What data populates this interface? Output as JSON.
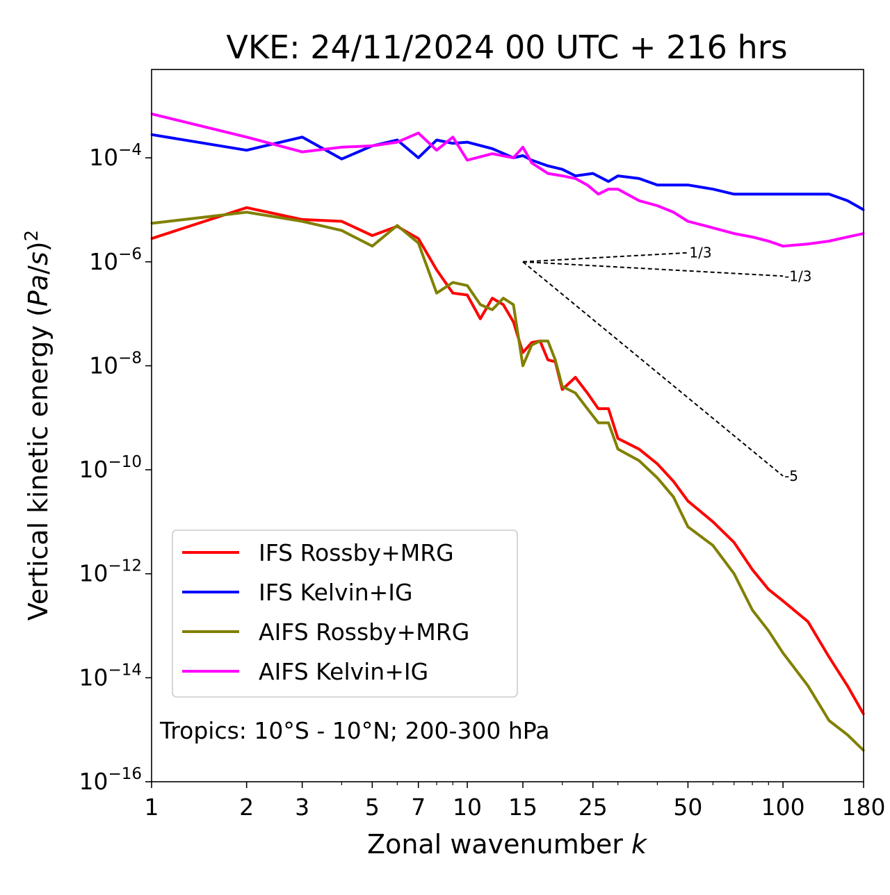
{
  "chart_data": {
    "type": "line",
    "title": "VKE: 24/11/2024 00 UTC + 216 hrs",
    "xlabel": "Zonal wavenumber k",
    "ylabel": "Vertical kinetic energy (Pa/s)²",
    "xscale": "log",
    "yscale": "log",
    "xlim": [
      1,
      180
    ],
    "ylim": [
      1e-16,
      0.005
    ],
    "xticks": [
      1,
      2,
      3,
      5,
      7,
      10,
      15,
      25,
      50,
      100,
      180
    ],
    "xtick_labels": [
      "1",
      "2",
      "3",
      "5",
      "7",
      "10",
      "15",
      "25",
      "50",
      "100",
      "180"
    ],
    "yticks": [
      -16,
      -14,
      -12,
      -10,
      -8,
      -6,
      -4
    ],
    "ytick_base": "10",
    "ytick_exponents": [
      "−16",
      "−14",
      "−12",
      "−10",
      "−8",
      "−6",
      "−4"
    ],
    "annotation": "Tropics: 10°S - 10°N; 200-300 hPa",
    "legend_position": "lower-left",
    "grid": false,
    "series": [
      {
        "name": "IFS Rossby+MRG",
        "color": "#ff0000",
        "x": [
          1,
          2,
          3,
          4,
          5,
          6,
          7,
          8,
          9,
          10,
          11,
          12,
          13,
          14,
          15,
          16,
          17,
          18,
          19,
          20,
          22,
          24,
          26,
          28,
          30,
          35,
          40,
          45,
          50,
          60,
          70,
          80,
          90,
          100,
          120,
          140,
          160,
          180
        ],
        "y": [
          2.8e-06,
          1.1e-05,
          6.5e-06,
          6e-06,
          3.2e-06,
          4.8e-06,
          2.8e-06,
          7e-07,
          2.5e-07,
          2.3e-07,
          8e-08,
          2e-07,
          1.5e-07,
          7e-08,
          1.8e-08,
          2.8e-08,
          3e-08,
          1.3e-08,
          1.2e-08,
          3.5e-09,
          6e-09,
          3e-09,
          1.5e-09,
          1.5e-09,
          4e-10,
          2.5e-10,
          1.3e-10,
          6e-11,
          2.5e-11,
          1e-11,
          4e-12,
          1.2e-12,
          5e-13,
          3e-13,
          1.2e-13,
          2.5e-14,
          7e-15,
          2e-15
        ]
      },
      {
        "name": "IFS Kelvin+IG",
        "color": "#0000ff",
        "x": [
          1,
          2,
          3,
          4,
          5,
          6,
          7,
          8,
          9,
          10,
          12,
          14,
          15,
          16,
          18,
          20,
          22,
          25,
          28,
          30,
          35,
          40,
          45,
          50,
          60,
          70,
          80,
          90,
          100,
          120,
          140,
          160,
          180
        ],
        "y": [
          0.00028,
          0.00014,
          0.00025,
          9.5e-05,
          0.00017,
          0.00022,
          0.0001,
          0.00022,
          0.00019,
          0.0002,
          0.00015,
          0.0001,
          0.00011,
          9e-05,
          7e-05,
          6e-05,
          4.5e-05,
          5e-05,
          3.5e-05,
          4.5e-05,
          4e-05,
          3e-05,
          3e-05,
          3e-05,
          2.5e-05,
          2e-05,
          2e-05,
          2e-05,
          2e-05,
          2e-05,
          2e-05,
          1.5e-05,
          1e-05
        ]
      },
      {
        "name": "AIFS Rossby+MRG",
        "color": "#808000",
        "x": [
          1,
          2,
          3,
          4,
          5,
          6,
          7,
          8,
          9,
          10,
          11,
          12,
          13,
          14,
          15,
          16,
          17,
          18,
          19,
          20,
          22,
          24,
          26,
          28,
          30,
          35,
          40,
          45,
          50,
          60,
          70,
          80,
          90,
          100,
          120,
          140,
          160,
          180
        ],
        "y": [
          5.5e-06,
          9e-06,
          6e-06,
          4e-06,
          2e-06,
          5e-06,
          2.3e-06,
          2.5e-07,
          4e-07,
          3.5e-07,
          1.5e-07,
          1.2e-07,
          2e-07,
          1.5e-07,
          1e-08,
          2.5e-08,
          3e-08,
          3e-08,
          1.3e-08,
          4e-09,
          3e-09,
          1.5e-09,
          8e-10,
          8e-10,
          2.5e-10,
          1.5e-10,
          7e-11,
          3e-11,
          8e-12,
          3.5e-12,
          1e-12,
          2e-13,
          8e-14,
          3e-14,
          7e-15,
          1.5e-15,
          8e-16,
          4e-16
        ]
      },
      {
        "name": "AIFS Kelvin+IG",
        "color": "#ff00ff",
        "x": [
          1,
          2,
          3,
          4,
          5,
          6,
          7,
          8,
          9,
          10,
          12,
          14,
          15,
          16,
          18,
          20,
          22,
          24,
          26,
          28,
          30,
          35,
          40,
          45,
          50,
          60,
          70,
          80,
          90,
          100,
          120,
          140,
          160,
          180
        ],
        "y": [
          0.0007,
          0.00025,
          0.00013,
          0.00016,
          0.00017,
          0.0002,
          0.0003,
          0.00014,
          0.00025,
          9e-05,
          0.00012,
          0.0001,
          0.00016,
          8e-05,
          5e-05,
          4.5e-05,
          4e-05,
          3e-05,
          2e-05,
          2.5e-05,
          2.5e-05,
          1.5e-05,
          1.2e-05,
          9e-06,
          6e-06,
          4.5e-06,
          3.5e-06,
          3e-06,
          2.5e-06,
          2e-06,
          2.2e-06,
          2.5e-06,
          3e-06,
          3.5e-06
        ]
      }
    ],
    "reference_slopes": [
      {
        "label": "1/3",
        "slope": 0.3333,
        "x0": 15,
        "x1": 50,
        "y0": 1e-06
      },
      {
        "label": "-1/3",
        "slope": -0.3333,
        "x0": 15,
        "x1": 100,
        "y0": 1e-06
      },
      {
        "label": "-5",
        "slope": -5,
        "x0": 15,
        "x1": 100,
        "y0": 1e-06
      }
    ]
  }
}
